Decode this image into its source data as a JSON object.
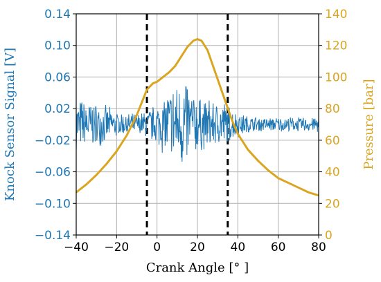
{
  "chart_data": {
    "type": "line",
    "title": "",
    "xlabel": "Crank Angle [° ]",
    "ylabel_left": "Knock Sensor Signal [V]",
    "ylabel_right": "Pressure [bar]",
    "xlim": [
      -40,
      80
    ],
    "ylim_left": [
      -0.14,
      0.14
    ],
    "ylim_right": [
      0,
      140
    ],
    "x_ticks": [
      -40,
      -20,
      0,
      20,
      40,
      60,
      80
    ],
    "x_tick_labels": [
      "−40",
      "−20",
      "0",
      "20",
      "40",
      "60",
      "80"
    ],
    "y_left_ticks": [
      -0.14,
      -0.1,
      -0.06,
      -0.02,
      0.02,
      0.06,
      0.1,
      0.14
    ],
    "y_left_tick_labels": [
      "−0.14",
      "−0.10",
      "−0.06",
      "−0.02",
      "0.02",
      "0.06",
      "0.10",
      "0.14"
    ],
    "y_right_ticks": [
      0,
      20,
      40,
      60,
      80,
      100,
      120,
      140
    ],
    "y_right_tick_labels": [
      "0",
      "20",
      "40",
      "60",
      "80",
      "100",
      "120",
      "140"
    ],
    "grid": true,
    "vlines": [
      {
        "x": -5,
        "style": "dashed",
        "color": "#000000"
      },
      {
        "x": 35,
        "style": "dashed",
        "color": "#000000"
      }
    ],
    "series": [
      {
        "axis": "right",
        "color": "#DAA520",
        "x": [
          -40,
          -35,
          -30,
          -25,
          -20,
          -15,
          -10,
          -5,
          -2,
          0,
          3,
          6,
          9,
          12,
          15,
          18,
          20,
          22,
          25,
          28,
          31,
          34,
          37,
          40,
          45,
          50,
          55,
          60,
          65,
          70,
          75,
          80
        ],
        "y": [
          27,
          32,
          38,
          45,
          53,
          63,
          76,
          92,
          96,
          97,
          100,
          103,
          107,
          113,
          119,
          123,
          124,
          123,
          117,
          106,
          95,
          84,
          73,
          64,
          54,
          47,
          41,
          36,
          33,
          30,
          27,
          25
        ]
      },
      {
        "axis": "left",
        "color": "#1f77b4",
        "envelope_x": [
          -40,
          -35,
          -30,
          -25,
          -20,
          -15,
          -10,
          -5,
          0,
          3,
          6,
          9,
          12,
          14,
          16,
          18,
          20,
          23,
          26,
          30,
          33,
          36,
          40,
          45,
          50,
          55,
          60,
          65,
          70,
          75,
          80
        ],
        "envelope_amp": [
          0.035,
          0.035,
          0.03,
          0.025,
          0.018,
          0.015,
          0.015,
          0.02,
          0.03,
          0.04,
          0.05,
          0.06,
          0.06,
          0.075,
          0.055,
          0.045,
          0.04,
          0.035,
          0.035,
          0.03,
          0.035,
          0.025,
          0.018,
          0.012,
          0.01,
          0.01,
          0.01,
          0.01,
          0.01,
          0.01,
          0.012
        ],
        "baseline": 0.0,
        "samples": 600
      }
    ]
  }
}
